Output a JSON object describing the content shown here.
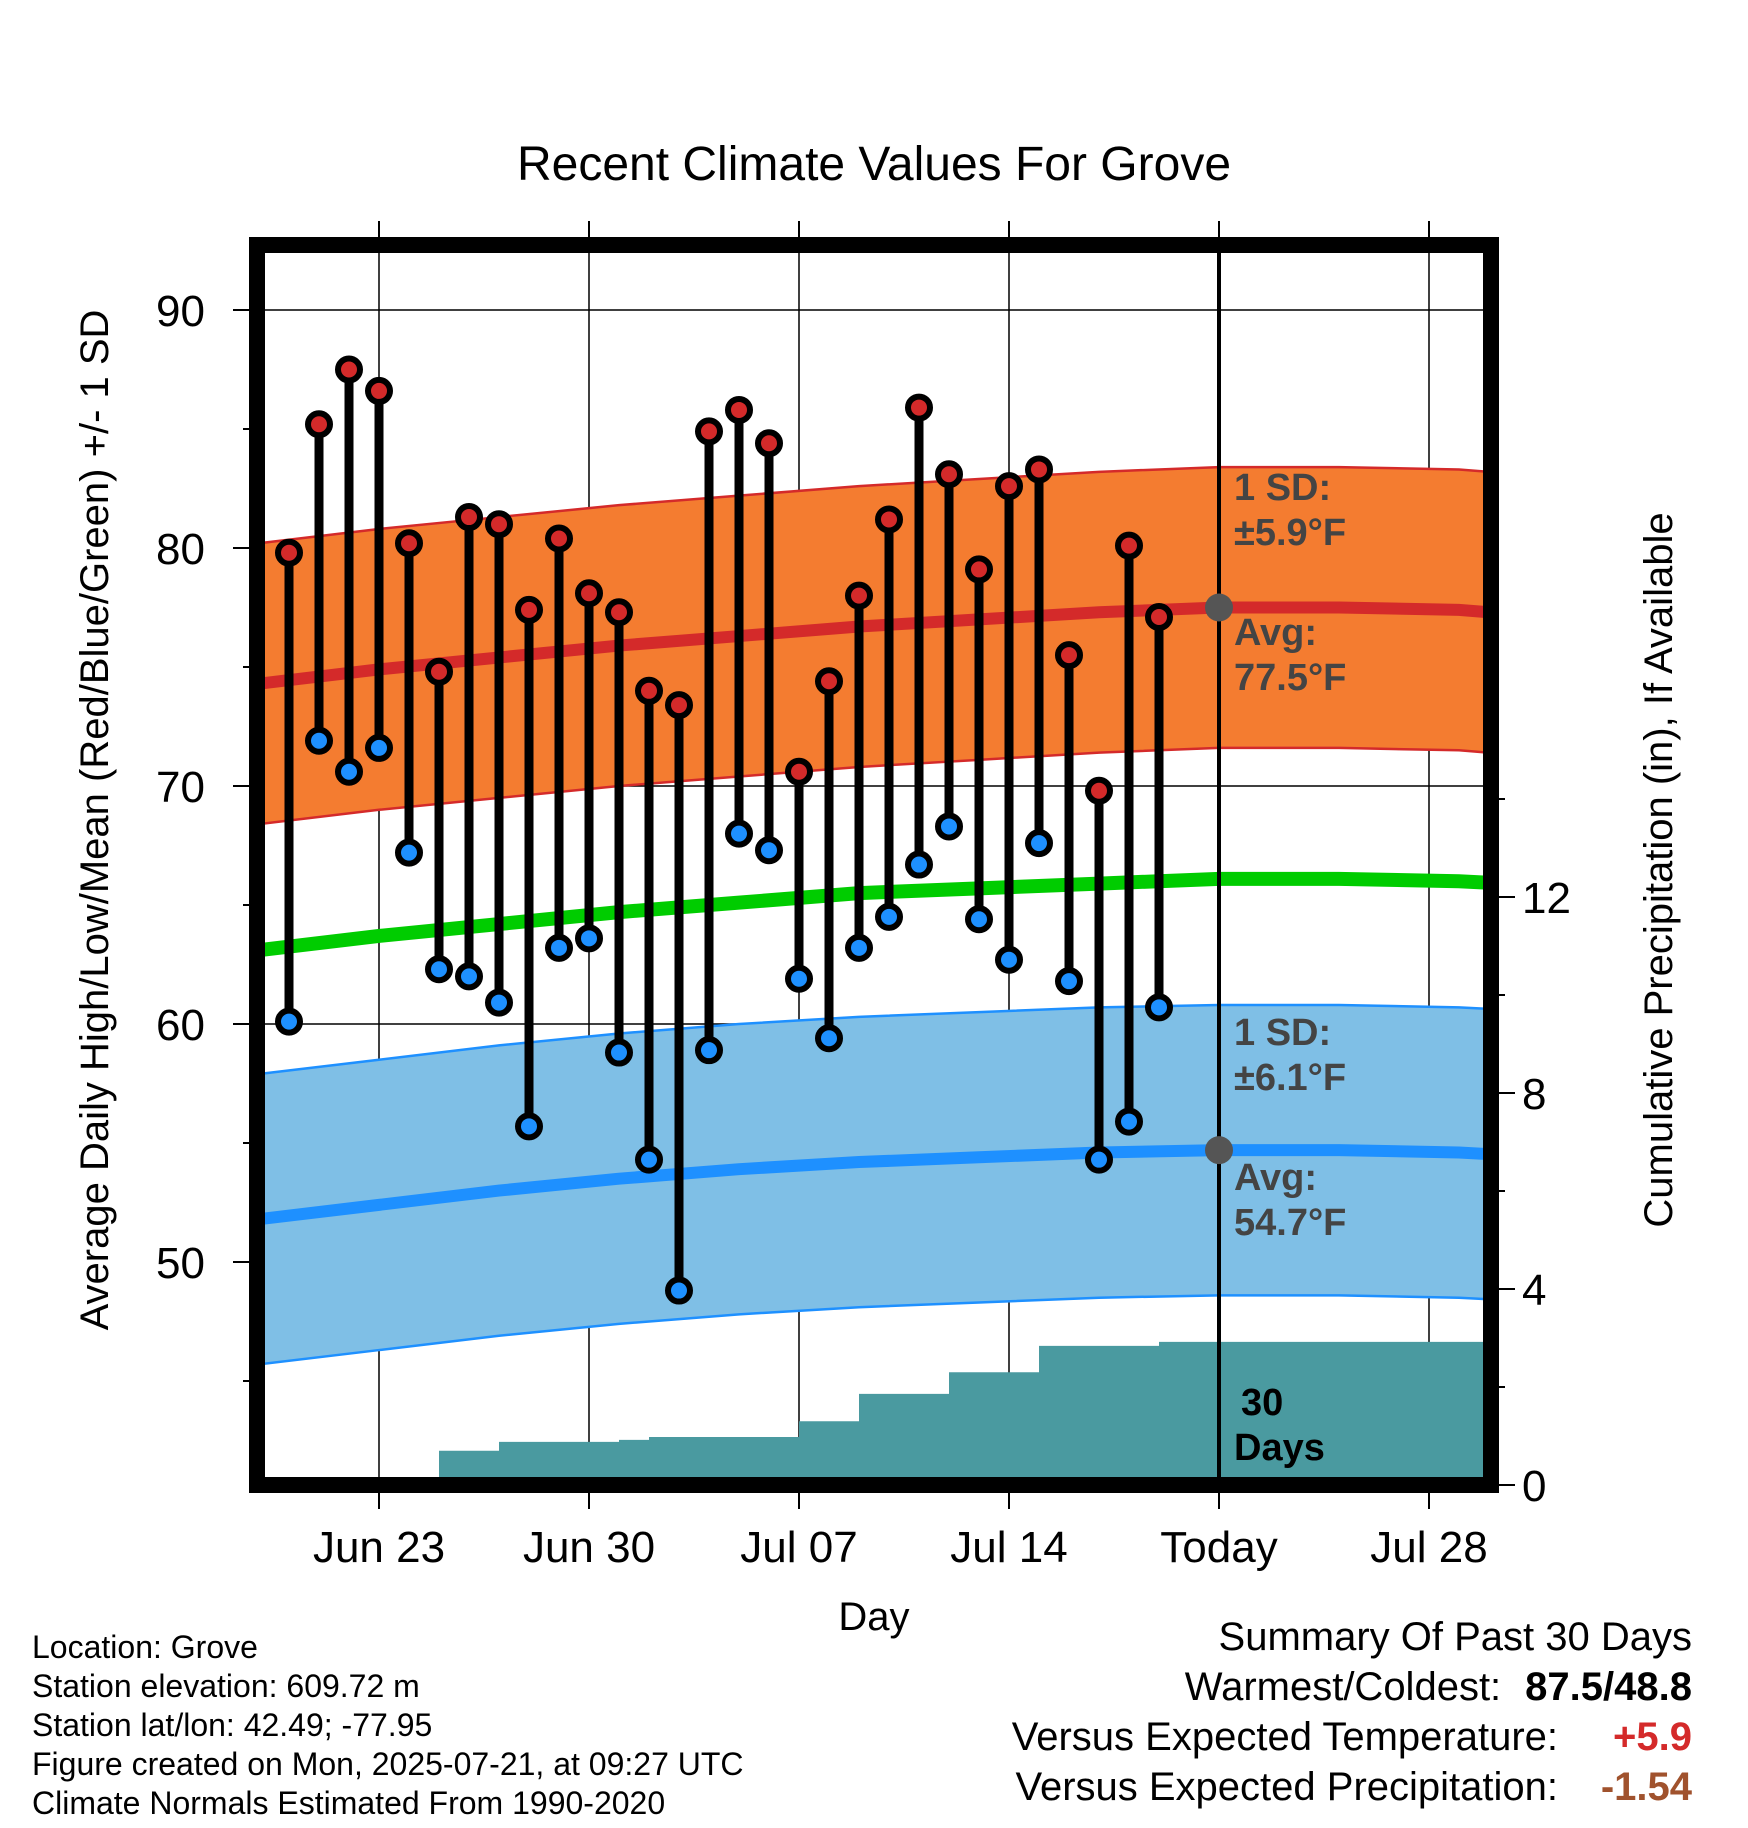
{
  "title": "Recent Climate Values For Grove",
  "chart_data": {
    "type": "line",
    "title": "Recent Climate Values For Grove",
    "xlabel": "Day",
    "ylabel": "Average Daily High/Low/Mean (Red/Blue/Green) +/- 1 SD",
    "y2label": "Cumulative Precipitation (in), If Available",
    "x_domain": [
      "2025-06-19",
      "2025-08-01"
    ],
    "ylim": [
      40.5,
      93
    ],
    "y2lim": [
      0,
      19.1
    ],
    "grid": true,
    "x_ticks": [
      {
        "date": "2025-06-23",
        "label": "Jun 23"
      },
      {
        "date": "2025-06-30",
        "label": "Jun 30"
      },
      {
        "date": "2025-07-07",
        "label": "Jul 07"
      },
      {
        "date": "2025-07-14",
        "label": "Jul 14"
      },
      {
        "date": "2025-07-21",
        "label": "Today"
      },
      {
        "date": "2025-07-28",
        "label": "Jul 28"
      }
    ],
    "y_ticks": [
      "50",
      "60",
      "70",
      "80",
      "90"
    ],
    "y2_ticks": [
      "0",
      "4",
      "8",
      "12"
    ],
    "today": "2025-07-21",
    "daily_observations": {
      "dates": [
        "2025-06-20",
        "2025-06-21",
        "2025-06-22",
        "2025-06-23",
        "2025-06-24",
        "2025-06-25",
        "2025-06-26",
        "2025-06-27",
        "2025-06-28",
        "2025-06-29",
        "2025-06-30",
        "2025-07-01",
        "2025-07-02",
        "2025-07-03",
        "2025-07-04",
        "2025-07-05",
        "2025-07-06",
        "2025-07-07",
        "2025-07-08",
        "2025-07-09",
        "2025-07-10",
        "2025-07-11",
        "2025-07-12",
        "2025-07-13",
        "2025-07-14",
        "2025-07-15",
        "2025-07-16",
        "2025-07-17",
        "2025-07-18",
        "2025-07-19",
        "2025-07-20"
      ],
      "high": [
        79.8,
        85.2,
        87.5,
        86.6,
        80.2,
        74.8,
        81.3,
        81.0,
        77.4,
        80.4,
        78.1,
        77.3,
        74.0,
        73.4,
        84.9,
        85.8,
        84.4,
        70.6,
        74.4,
        78.0,
        81.2,
        85.9,
        83.1,
        79.1,
        82.6,
        83.3,
        75.5,
        69.8,
        80.1,
        77.1,
        null
      ],
      "low": [
        60.1,
        71.9,
        70.6,
        71.6,
        67.2,
        62.3,
        62.0,
        60.9,
        55.7,
        63.2,
        63.6,
        58.8,
        54.3,
        48.8,
        58.9,
        68.0,
        67.3,
        61.9,
        59.4,
        63.2,
        64.5,
        66.7,
        68.3,
        64.4,
        62.7,
        67.6,
        61.8,
        54.3,
        55.9,
        60.7,
        null
      ]
    },
    "series": [
      {
        "name": "High",
        "mean": [
          74.3,
          74.9,
          75.4,
          75.9,
          76.3,
          76.7,
          77.0,
          77.3,
          77.5,
          77.5,
          77.4,
          77.1
        ],
        "sd": 5.9
      },
      {
        "name": "Low",
        "mean": [
          51.8,
          52.4,
          53.0,
          53.5,
          53.9,
          54.2,
          54.4,
          54.6,
          54.7,
          54.7,
          54.6,
          54.4
        ],
        "sd": 6.1
      },
      {
        "name": "Mean",
        "mean": [
          63.1,
          63.7,
          64.2,
          64.7,
          65.1,
          65.5,
          65.7,
          65.9,
          66.1,
          66.1,
          66.0,
          65.8
        ]
      }
    ],
    "normal_dates": [
      "2025-06-19",
      "2025-06-23",
      "2025-06-27",
      "2025-07-01",
      "2025-07-05",
      "2025-07-09",
      "2025-07-13",
      "2025-07-17",
      "2025-07-21",
      "2025-07-25",
      "2025-07-29",
      "2025-08-01"
    ],
    "precip_cumulative": {
      "dates": [
        "2025-06-19",
        "2025-06-23",
        "2025-06-24",
        "2025-06-25",
        "2025-06-26",
        "2025-06-27",
        "2025-07-01",
        "2025-07-02",
        "2025-07-06",
        "2025-07-07",
        "2025-07-08",
        "2025-07-09",
        "2025-07-10",
        "2025-07-11",
        "2025-07-12",
        "2025-07-13",
        "2025-07-14",
        "2025-07-15",
        "2025-07-16",
        "2025-07-17",
        "2025-07-18",
        "2025-07-19",
        "2025-07-20",
        "2025-08-01"
      ],
      "values": [
        0,
        0,
        0,
        0.7,
        0.7,
        0.88,
        0.92,
        0.98,
        0.98,
        1.3,
        1.3,
        1.86,
        1.86,
        1.86,
        2.3,
        2.3,
        2.3,
        2.84,
        2.84,
        2.84,
        2.84,
        2.92,
        2.92,
        2.92
      ]
    },
    "annotations": {
      "high_sd_title": "1 SD:",
      "high_sd_value": "±5.9°F",
      "high_avg_title": "Avg:",
      "high_avg_value": "77.5°F",
      "low_sd_title": "1 SD:",
      "low_sd_value": "±6.1°F",
      "low_avg_title": "Avg:",
      "low_avg_value": "54.7°F",
      "precip_days": "30",
      "precip_days_label": "Days"
    },
    "colors": {
      "high_band": "#f47c30",
      "high_band_edge": "#d42a2a",
      "high_line": "#d42a2a",
      "low_band": "#7fbfe6",
      "low_band_edge": "#1e90ff",
      "low_line": "#1e90ff",
      "mean_line": "#00cc00",
      "precip": "#4a9aa0",
      "high_dot": "#d42a2a",
      "low_dot": "#1e90ff",
      "today_marker": "#555555"
    }
  },
  "footer": {
    "location": "Location: Grove",
    "elevation": "Station elevation: 609.72 m",
    "latlon": "Station lat/lon: 42.49; -77.95",
    "created": "Figure created on Mon, 2025-07-21, at 09:27 UTC",
    "normals": "Climate Normals Estimated From 1990-2020"
  },
  "summary": {
    "title": "Summary Of Past 30 Days",
    "warmest_label": "Warmest/Coldest:",
    "warmest_value": "87.5/48.8",
    "temp_label": "Versus Expected Temperature:",
    "temp_value": "+5.9",
    "precip_label": "Versus Expected Precipitation:",
    "precip_value": "-1.54"
  }
}
